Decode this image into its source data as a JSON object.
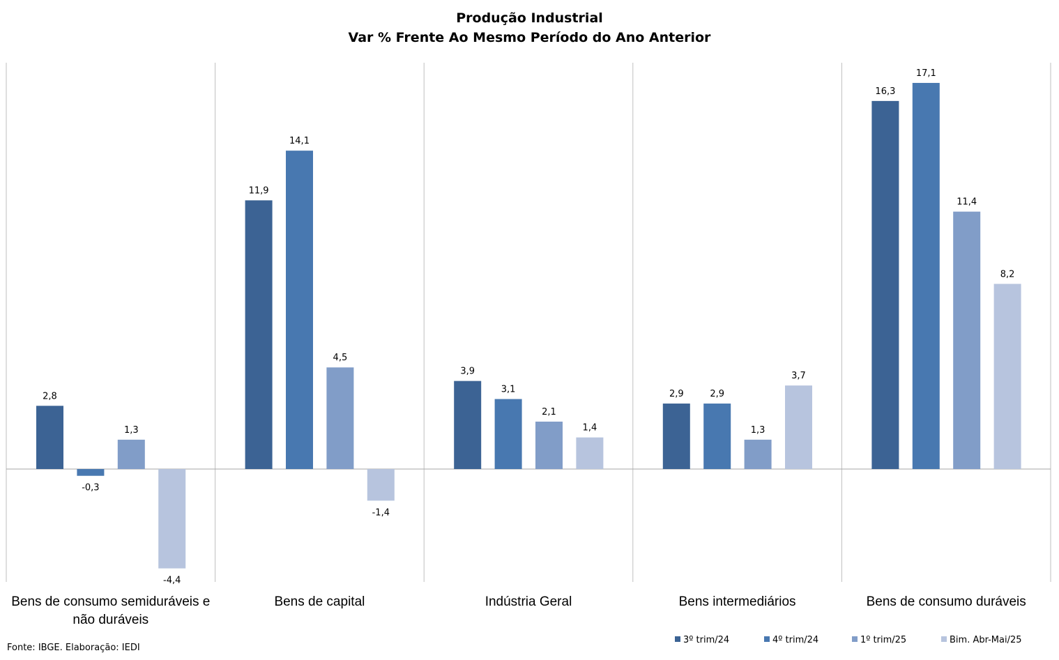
{
  "chart_data": {
    "type": "bar",
    "title": "Produção Industrial",
    "subtitle": "Var % Frente Ao Mesmo Período do Ano Anterior",
    "categories": [
      [
        "Bens de consumo semiduráveis e",
        "não duráveis"
      ],
      [
        "Bens de capital"
      ],
      [
        "Indústria Geral"
      ],
      [
        "Bens intermediários"
      ],
      [
        "Bens de consumo duráveis"
      ]
    ],
    "series": [
      {
        "name": "3º trim/24",
        "color": "#3c6394",
        "values": [
          2.8,
          11.9,
          3.9,
          2.9,
          16.3
        ],
        "labels": [
          "2,8",
          "11,9",
          "3,9",
          "2,9",
          "16,3"
        ]
      },
      {
        "name": "4º trim/24",
        "color": "#4878b0",
        "values": [
          -0.3,
          14.1,
          3.1,
          2.9,
          17.1
        ],
        "labels": [
          "-0,3",
          "14,1",
          "3,1",
          "2,9",
          "17,1"
        ]
      },
      {
        "name": "1º trim/25",
        "color": "#819dc8",
        "values": [
          1.3,
          4.5,
          2.1,
          1.3,
          11.4
        ],
        "labels": [
          "1,3",
          "4,5",
          "2,1",
          "1,3",
          "11,4"
        ]
      },
      {
        "name": "Bim. Abr-Mai/25",
        "color": "#b7c4de",
        "values": [
          -4.4,
          -1.4,
          1.4,
          3.7,
          8.2
        ],
        "labels": [
          "-4,4",
          "-1,4",
          "1,4",
          "3,7",
          "8,2"
        ]
      }
    ],
    "ylim": [
      -5,
      18
    ],
    "grid": false,
    "legend_position": "bottom-right"
  },
  "source_note": "Fonte: IBGE. Elaboração: IEDI"
}
